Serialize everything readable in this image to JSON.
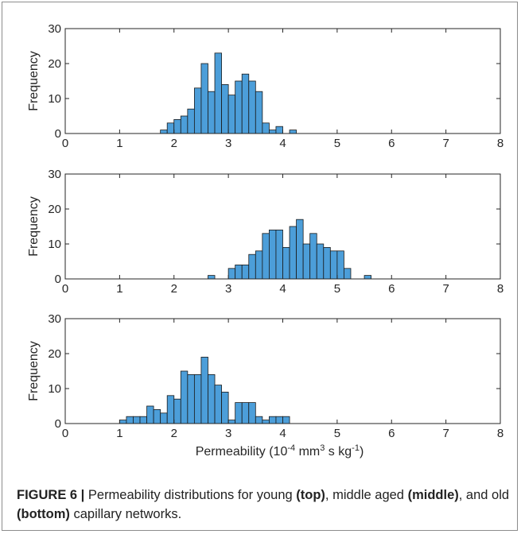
{
  "chart_data": [
    {
      "type": "bar",
      "panel": "top",
      "ylabel": "Frequency",
      "xlim": [
        0,
        8
      ],
      "ylim": [
        0,
        30
      ],
      "xticks": [
        "0",
        "1",
        "2",
        "3",
        "4",
        "5",
        "6",
        "7",
        "8"
      ],
      "yticks": [
        "0",
        "10",
        "20",
        "30"
      ],
      "bin_width": 0.125,
      "bins": [
        {
          "x0": 1.75,
          "value": 1
        },
        {
          "x0": 1.875,
          "value": 3
        },
        {
          "x0": 2.0,
          "value": 4
        },
        {
          "x0": 2.125,
          "value": 5
        },
        {
          "x0": 2.25,
          "value": 7
        },
        {
          "x0": 2.375,
          "value": 13
        },
        {
          "x0": 2.5,
          "value": 20
        },
        {
          "x0": 2.625,
          "value": 12
        },
        {
          "x0": 2.75,
          "value": 23
        },
        {
          "x0": 2.875,
          "value": 14
        },
        {
          "x0": 3.0,
          "value": 11
        },
        {
          "x0": 3.125,
          "value": 15
        },
        {
          "x0": 3.25,
          "value": 17
        },
        {
          "x0": 3.375,
          "value": 15
        },
        {
          "x0": 3.5,
          "value": 12
        },
        {
          "x0": 3.625,
          "value": 3
        },
        {
          "x0": 3.75,
          "value": 1
        },
        {
          "x0": 3.875,
          "value": 2
        },
        {
          "x0": 4.125,
          "value": 1
        }
      ]
    },
    {
      "type": "bar",
      "panel": "middle",
      "ylabel": "Frequency",
      "xlim": [
        0,
        8
      ],
      "ylim": [
        0,
        30
      ],
      "xticks": [
        "0",
        "1",
        "2",
        "3",
        "4",
        "5",
        "6",
        "7",
        "8"
      ],
      "yticks": [
        "0",
        "10",
        "20",
        "30"
      ],
      "bin_width": 0.125,
      "bins": [
        {
          "x0": 2.625,
          "value": 1
        },
        {
          "x0": 3.0,
          "value": 3
        },
        {
          "x0": 3.125,
          "value": 4
        },
        {
          "x0": 3.25,
          "value": 4
        },
        {
          "x0": 3.375,
          "value": 7
        },
        {
          "x0": 3.5,
          "value": 8
        },
        {
          "x0": 3.625,
          "value": 13
        },
        {
          "x0": 3.75,
          "value": 14
        },
        {
          "x0": 3.875,
          "value": 14
        },
        {
          "x0": 4.0,
          "value": 9
        },
        {
          "x0": 4.125,
          "value": 15
        },
        {
          "x0": 4.25,
          "value": 17
        },
        {
          "x0": 4.375,
          "value": 10
        },
        {
          "x0": 4.5,
          "value": 13
        },
        {
          "x0": 4.625,
          "value": 10
        },
        {
          "x0": 4.75,
          "value": 9
        },
        {
          "x0": 4.875,
          "value": 8
        },
        {
          "x0": 5.0,
          "value": 8
        },
        {
          "x0": 5.125,
          "value": 3
        },
        {
          "x0": 5.5,
          "value": 1
        }
      ]
    },
    {
      "type": "bar",
      "panel": "bottom",
      "ylabel": "Frequency",
      "xlabel_main": "Permeability (10",
      "xlabel_sup1": "-4",
      "xlabel_mid": " mm",
      "xlabel_sup2": "3",
      "xlabel_end": " s kg",
      "xlabel_sup3": "-1",
      "xlabel_close": ")",
      "xlim": [
        0,
        8
      ],
      "ylim": [
        0,
        30
      ],
      "xticks": [
        "0",
        "1",
        "2",
        "3",
        "4",
        "5",
        "6",
        "7",
        "8"
      ],
      "yticks": [
        "0",
        "10",
        "20",
        "30"
      ],
      "bin_width": 0.125,
      "bins": [
        {
          "x0": 1.0,
          "value": 1
        },
        {
          "x0": 1.125,
          "value": 2
        },
        {
          "x0": 1.25,
          "value": 2
        },
        {
          "x0": 1.375,
          "value": 2
        },
        {
          "x0": 1.5,
          "value": 5
        },
        {
          "x0": 1.625,
          "value": 4
        },
        {
          "x0": 1.75,
          "value": 3
        },
        {
          "x0": 1.875,
          "value": 8
        },
        {
          "x0": 2.0,
          "value": 7
        },
        {
          "x0": 2.125,
          "value": 15
        },
        {
          "x0": 2.25,
          "value": 14
        },
        {
          "x0": 2.375,
          "value": 14
        },
        {
          "x0": 2.5,
          "value": 19
        },
        {
          "x0": 2.625,
          "value": 14
        },
        {
          "x0": 2.75,
          "value": 11
        },
        {
          "x0": 2.875,
          "value": 9
        },
        {
          "x0": 3.0,
          "value": 1
        },
        {
          "x0": 3.125,
          "value": 6
        },
        {
          "x0": 3.25,
          "value": 6
        },
        {
          "x0": 3.375,
          "value": 6
        },
        {
          "x0": 3.5,
          "value": 2
        },
        {
          "x0": 3.625,
          "value": 1
        },
        {
          "x0": 3.75,
          "value": 2
        },
        {
          "x0": 3.875,
          "value": 2
        },
        {
          "x0": 4.0,
          "value": 2
        }
      ]
    }
  ],
  "colors": {
    "bar_fill": "#4c9ed9",
    "bar_edge": "#1a1a1a",
    "axis": "#262626"
  },
  "caption": {
    "label": "FIGURE 6 |",
    "text1": " Permeability distributions for young ",
    "b1": "(top)",
    "text2": ", middle aged ",
    "b2": "(middle)",
    "text3": ", and old ",
    "b3": "(bottom)",
    "text4": " capillary networks."
  }
}
